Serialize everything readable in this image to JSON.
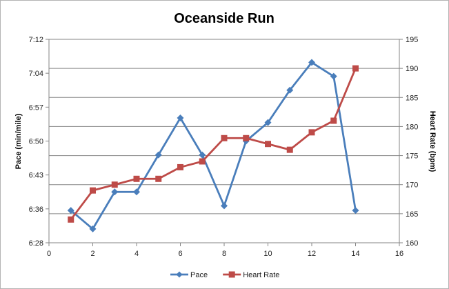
{
  "chart_data": {
    "type": "line",
    "title": "Oceanside Run",
    "xlabel": "",
    "ylabel": "Pace (min/mile)",
    "y2label": "Heart Rate (bpm)",
    "xlim": [
      0,
      16
    ],
    "xticks": [
      0,
      2,
      4,
      6,
      8,
      10,
      12,
      14,
      16
    ],
    "ylim_seconds": [
      388,
      432
    ],
    "yticks": [
      "6:28",
      "6:36",
      "6:43",
      "6:50",
      "6:57",
      "7:04",
      "7:12"
    ],
    "y2lim": [
      160,
      195
    ],
    "y2ticks": [
      160,
      165,
      170,
      175,
      180,
      185,
      190,
      195
    ],
    "grid": true,
    "legend": "bottom",
    "series": [
      {
        "name": "Pace",
        "axis": "left",
        "color": "#4a7ebb",
        "marker": "diamond",
        "x": [
          1,
          2,
          3,
          4,
          5,
          6,
          7,
          8,
          9,
          10,
          11,
          12,
          13,
          14
        ],
        "y": [
          "6:35",
          "6:31",
          "6:39",
          "6:39",
          "6:47",
          "6:55",
          "6:47",
          "6:36",
          "6:50",
          "6:54",
          "7:01",
          "7:07",
          "7:04",
          "6:35"
        ]
      },
      {
        "name": "Heart Rate",
        "axis": "right",
        "color": "#be4b48",
        "marker": "square",
        "x": [
          1,
          2,
          3,
          4,
          5,
          6,
          7,
          8,
          9,
          10,
          11,
          12,
          13,
          14
        ],
        "y": [
          164,
          169,
          170,
          171,
          171,
          173,
          174,
          178,
          178,
          177,
          176,
          179,
          181,
          190
        ]
      }
    ]
  }
}
